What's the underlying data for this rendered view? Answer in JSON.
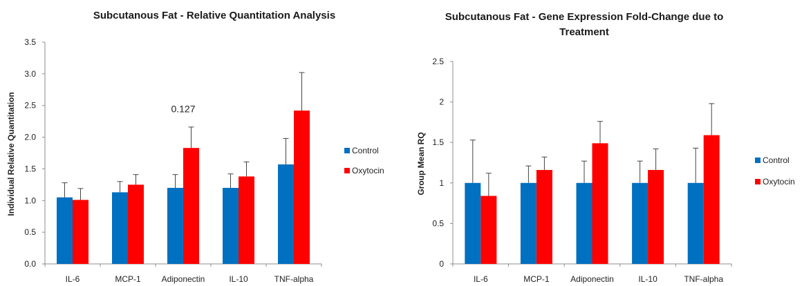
{
  "chart_data": [
    {
      "type": "bar",
      "title": "Subcutanous Fat - Relative Quantitation Analysis",
      "xlabel": "",
      "ylabel": "Individual Relative Quantitation",
      "ylim": [
        0,
        3.5
      ],
      "yticks": [
        "0.0",
        "0.5",
        "1.0",
        "1.5",
        "2.0",
        "2.5",
        "3.0",
        "3.5"
      ],
      "categories": [
        "IL-6",
        "MCP-1",
        "Adiponectin",
        "IL-10",
        "TNF-alpha"
      ],
      "series": [
        {
          "name": "Control",
          "color": "#0070c0",
          "values": [
            1.05,
            1.13,
            1.2,
            1.2,
            1.57
          ],
          "errors": [
            0.23,
            0.17,
            0.21,
            0.22,
            0.41
          ]
        },
        {
          "name": "Oxytocin",
          "color": "#ff0000",
          "values": [
            1.01,
            1.25,
            1.83,
            1.38,
            2.42
          ],
          "errors": [
            0.18,
            0.16,
            0.33,
            0.23,
            0.6
          ]
        }
      ],
      "legend": "right",
      "annotations": [
        {
          "text": "0.127",
          "x": "Adiponectin",
          "y": 2.45
        }
      ]
    },
    {
      "type": "bar",
      "title": "Subcutanous Fat - Gene Expression Fold-Change due to Treatment",
      "xlabel": "",
      "ylabel": "Group Mean RQ",
      "ylim": [
        0,
        2.5
      ],
      "yticks": [
        "0",
        "0.5",
        "1",
        "1.5",
        "2",
        "2.5"
      ],
      "categories": [
        "IL-6",
        "MCP-1",
        "Adiponectin",
        "IL-10",
        "TNF-alpha"
      ],
      "series": [
        {
          "name": "Control",
          "color": "#0070c0",
          "values": [
            1.0,
            1.0,
            1.0,
            1.0,
            1.0
          ],
          "errors": [
            0.53,
            0.21,
            0.27,
            0.27,
            0.43
          ]
        },
        {
          "name": "Oxytocin",
          "color": "#ff0000",
          "values": [
            0.84,
            1.16,
            1.49,
            1.16,
            1.59
          ],
          "errors": [
            0.28,
            0.16,
            0.27,
            0.26,
            0.39
          ]
        }
      ],
      "legend": "right"
    }
  ]
}
